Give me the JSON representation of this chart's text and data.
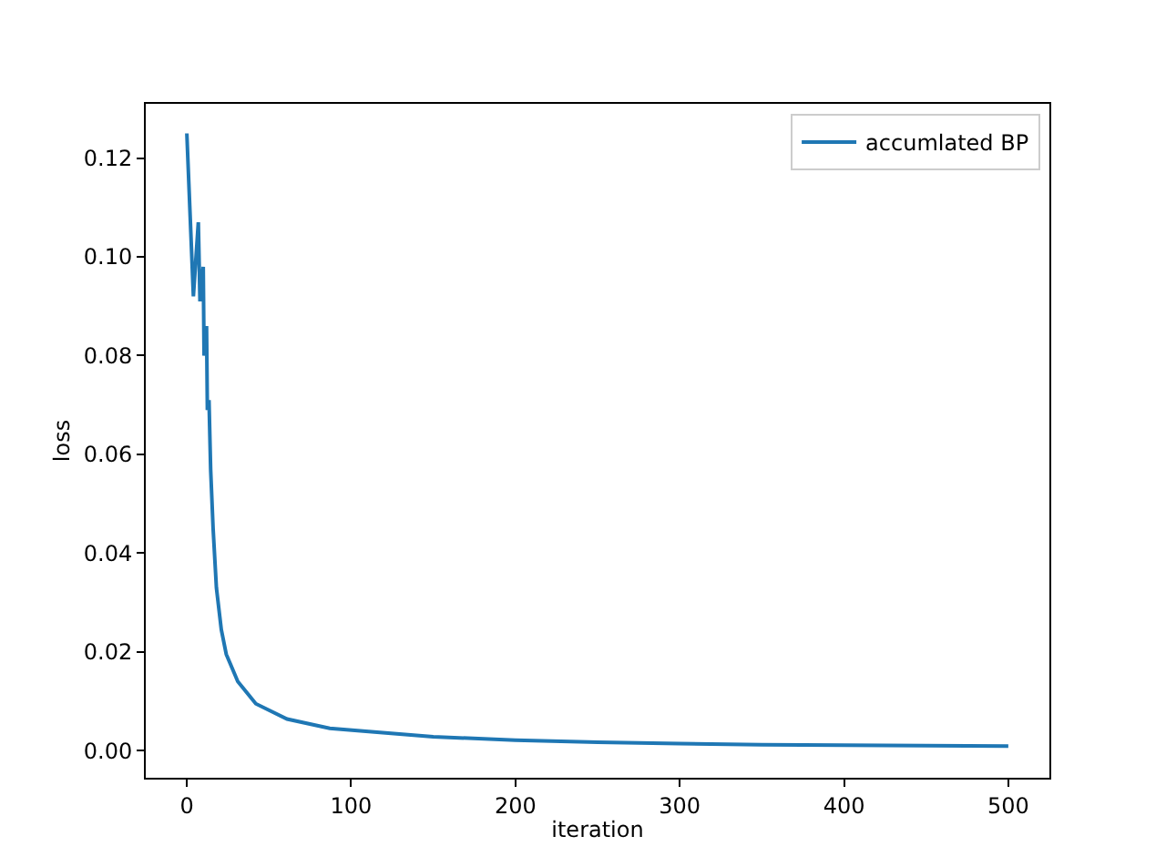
{
  "chart_data": {
    "type": "line",
    "xlabel": "iteration",
    "ylabel": "loss",
    "xlim": [
      -25,
      525
    ],
    "xticks": [
      0,
      100,
      200,
      300,
      400,
      500
    ],
    "ylim": [
      -0.0055,
      0.131
    ],
    "yticks": [
      {
        "value": 0,
        "label": "0.00"
      },
      {
        "value": 0.02,
        "label": "0.02"
      },
      {
        "value": 0.04,
        "label": "0.04"
      },
      {
        "value": 0.06,
        "label": "0.06"
      },
      {
        "value": 0.08,
        "label": "0.08"
      },
      {
        "value": 0.1,
        "label": "0.10"
      },
      {
        "value": 0.12,
        "label": "0.12"
      }
    ],
    "legend": "top right",
    "line_style": "solid",
    "marker": "none",
    "series": [
      {
        "name": "accumlated BP",
        "color": "#1f77b4",
        "x": [
          0,
          4,
          7,
          8,
          10,
          10.5,
          12,
          12.5,
          13.5,
          14.5,
          16,
          18,
          21,
          24,
          31,
          42,
          61,
          87,
          109,
          150,
          200,
          250,
          300,
          350,
          400,
          450,
          500
        ],
        "values": [
          0.125,
          0.092,
          0.107,
          0.091,
          0.098,
          0.08,
          0.086,
          0.069,
          0.071,
          0.057,
          0.045,
          0.033,
          0.0245,
          0.0195,
          0.014,
          0.0095,
          0.0064,
          0.0045,
          0.0039,
          0.0028,
          0.0021,
          0.0017,
          0.0014,
          0.0012,
          0.0011,
          0.001,
          0.0009
        ]
      }
    ]
  }
}
